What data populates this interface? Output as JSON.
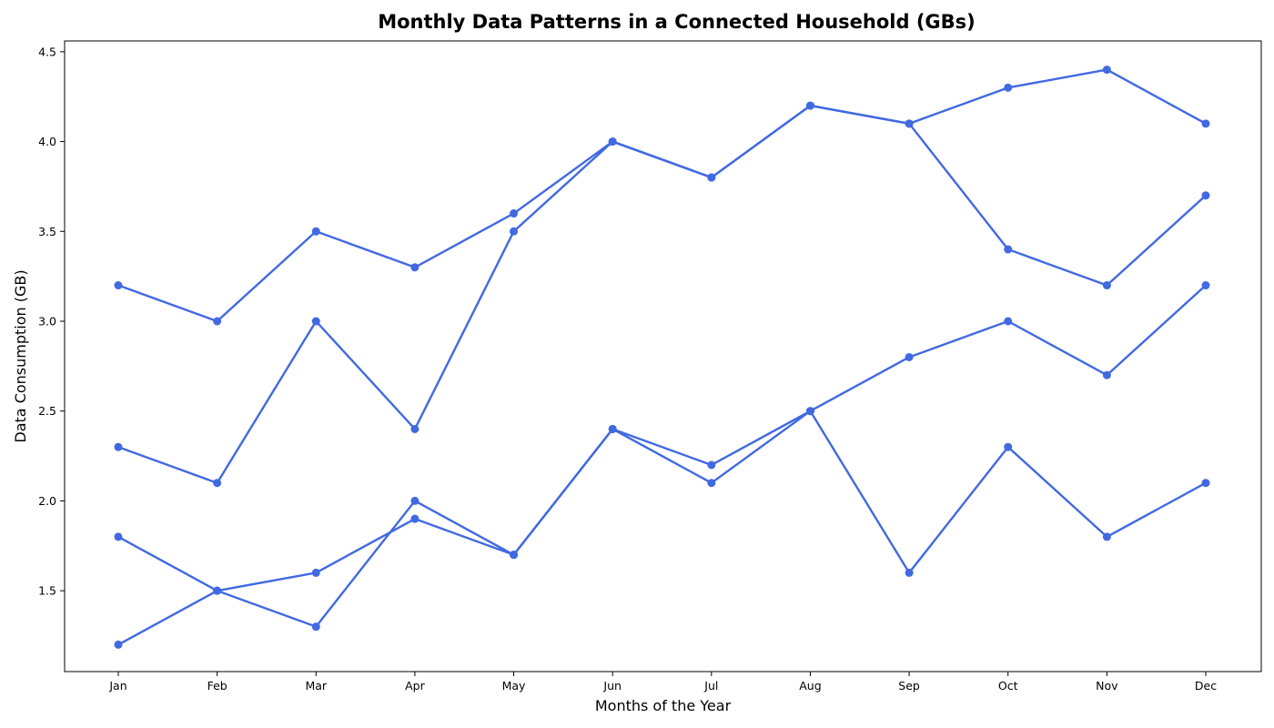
{
  "chart_data": {
    "type": "line",
    "title": "Monthly Data Patterns in a Connected Household (GBs)",
    "xlabel": "Months of the Year",
    "ylabel": "Data Consumption (GB)",
    "categories": [
      "Jan",
      "Feb",
      "Mar",
      "Apr",
      "May",
      "Jun",
      "Jul",
      "Aug",
      "Sep",
      "Oct",
      "Nov",
      "Dec"
    ],
    "yticks": [
      1.5,
      2.0,
      2.5,
      3.0,
      3.5,
      4.0,
      4.5
    ],
    "ylim": [
      1.05,
      4.56
    ],
    "grid": false,
    "legend": "none",
    "line_color": "#4169e1",
    "series": [
      {
        "values": [
          3.2,
          3.0,
          3.5,
          3.3,
          3.6,
          4.0,
          3.8,
          4.2,
          4.1,
          4.3,
          4.4,
          4.1
        ]
      },
      {
        "values": [
          2.3,
          2.1,
          3.0,
          2.4,
          3.5,
          4.0,
          3.8,
          4.2,
          4.1,
          3.4,
          3.2,
          3.7
        ]
      },
      {
        "values": [
          1.8,
          1.5,
          1.3,
          2.0,
          1.7,
          2.4,
          2.2,
          2.5,
          2.8,
          3.0,
          2.7,
          3.2
        ]
      },
      {
        "values": [
          1.2,
          1.5,
          1.6,
          1.9,
          1.7,
          2.4,
          2.1,
          2.5,
          1.6,
          2.3,
          1.8,
          2.1
        ]
      }
    ]
  }
}
